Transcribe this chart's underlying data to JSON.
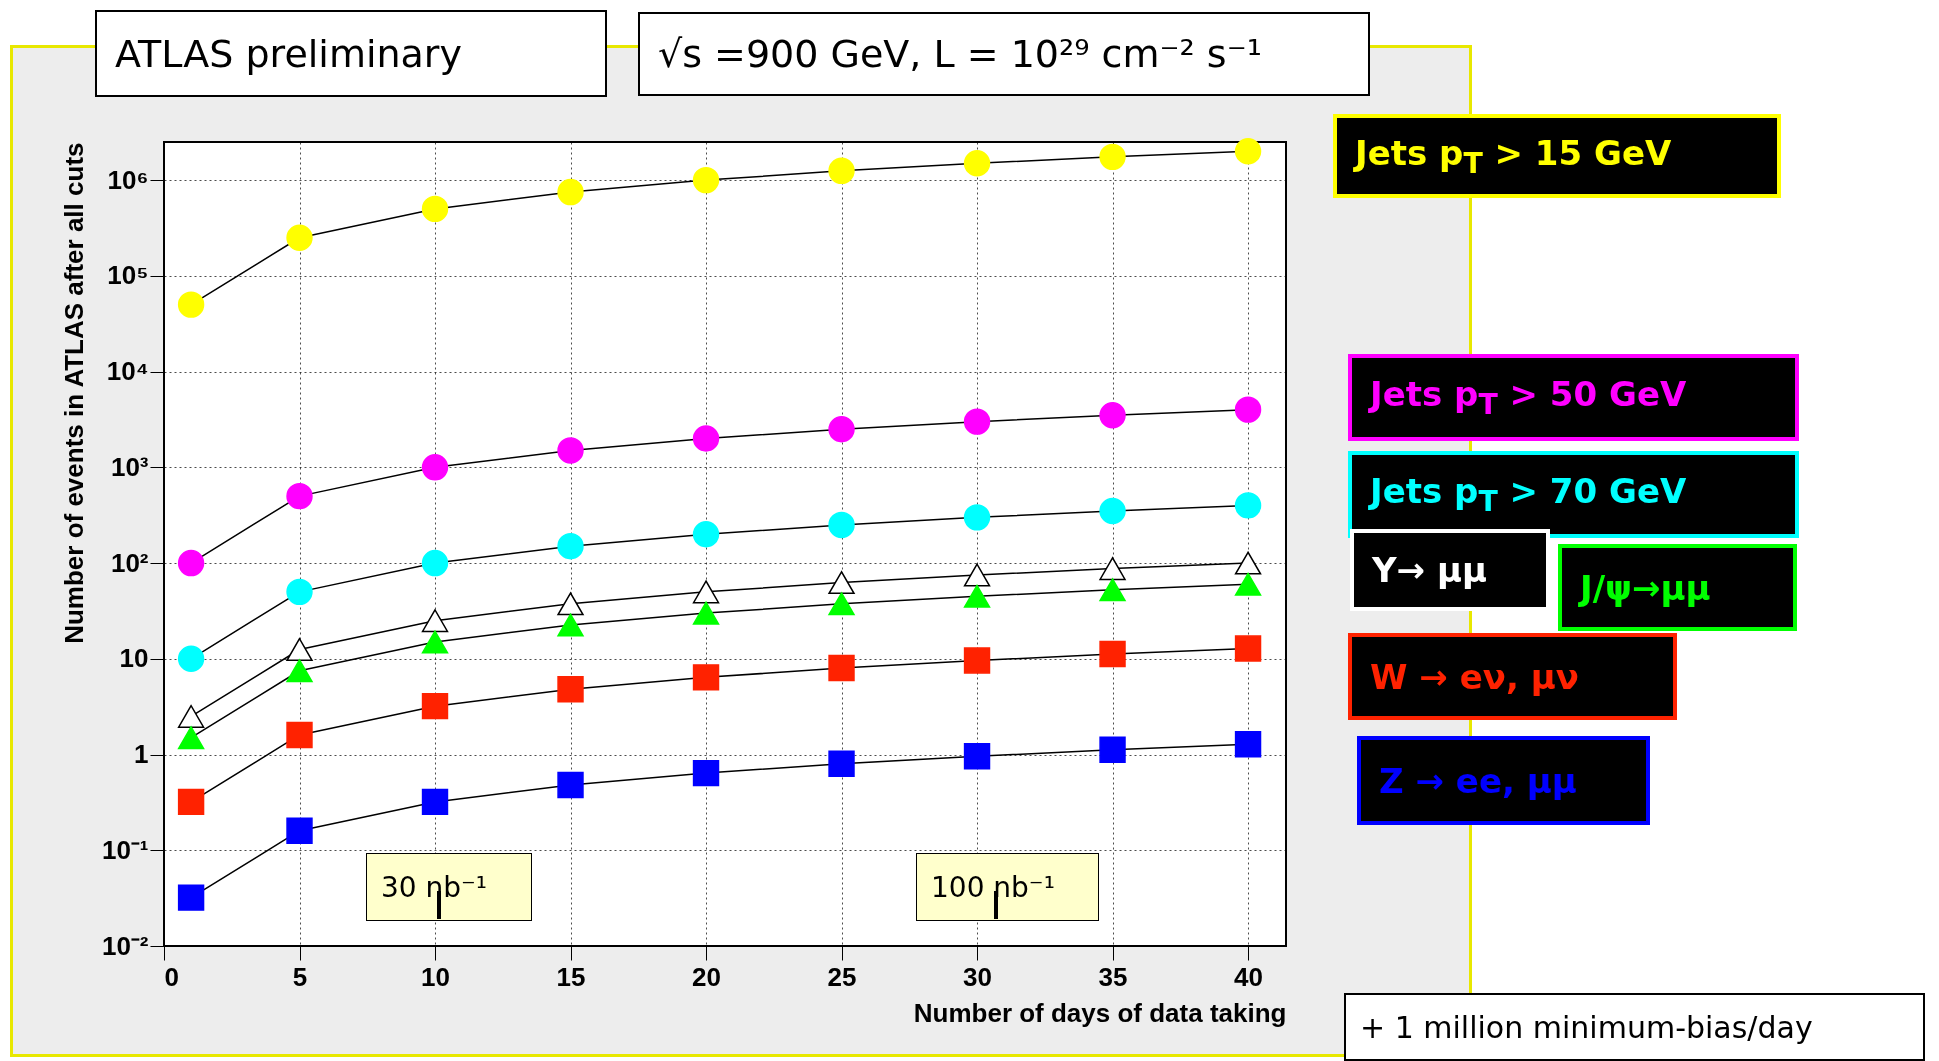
{
  "chart_data": {
    "type": "line",
    "title": "ATLAS preliminary",
    "subtitle": "√s =900 GeV,  L = 10²⁹ cm⁻² s⁻¹",
    "xlabel": "Number of days of data taking",
    "ylabel": "Number of events in ATLAS after all cuts",
    "x": [
      1,
      5,
      10,
      15,
      20,
      25,
      30,
      35,
      40
    ],
    "series": [
      {
        "name": "Jets p$_{T}$ > 15 GeV",
        "color": "#ffff00",
        "marker": "circle",
        "values": [
          50000,
          250000,
          500000,
          750000,
          1000000,
          1250000,
          1500000,
          1750000,
          2000000
        ]
      },
      {
        "name": "Jets p$_{T}$ > 50 GeV",
        "color": "#ff00ff",
        "marker": "circle",
        "values": [
          100,
          500,
          1000,
          1500,
          2000,
          2500,
          3000,
          3500,
          4000
        ]
      },
      {
        "name": "Jets p$_{T}$ > 70 GeV",
        "color": "#00ffff",
        "marker": "circle",
        "values": [
          10,
          50,
          100,
          150,
          200,
          250,
          300,
          350,
          400
        ]
      },
      {
        "name": "Υ→ μμ",
        "color": "#ffffff",
        "marker": "triangle",
        "values": [
          2.5,
          12.5,
          25,
          37.5,
          50,
          62.5,
          75,
          87.5,
          100
        ]
      },
      {
        "name": "J/ψ→μμ",
        "color": "#00ff00",
        "marker": "triangle",
        "values": [
          1.5,
          7.5,
          15,
          22.5,
          30,
          37.5,
          45,
          52.5,
          60
        ]
      },
      {
        "name": "W → eν, μν",
        "color": "#ff2200",
        "marker": "square",
        "values": [
          0.32,
          1.6,
          3.2,
          4.8,
          6.4,
          8,
          9.6,
          11.2,
          12.8
        ]
      },
      {
        "name": "Z → ee, μμ",
        "color": "#0000ff",
        "marker": "square",
        "values": [
          0.032,
          0.16,
          0.32,
          0.48,
          0.64,
          0.8,
          0.96,
          1.12,
          1.28
        ]
      }
    ],
    "log": "y",
    "grid": true,
    "legend": "right",
    "line_style": "solid",
    "xlim": [
      0,
      41.4
    ],
    "xticks": [
      0,
      5,
      10,
      15,
      20,
      25,
      30,
      35,
      40
    ],
    "ylim": [
      0.01,
      2500000
    ],
    "yticks": [
      {
        "value": 0.01,
        "label": "10⁻²"
      },
      {
        "value": 0.1,
        "label": "10⁻¹"
      },
      1,
      10,
      {
        "value": 100,
        "label": "10²"
      },
      {
        "value": 1000,
        "label": "10³"
      },
      {
        "value": 10000,
        "label": "10⁴"
      },
      {
        "value": 100000,
        "label": "10⁵"
      },
      {
        "value": 1000000,
        "label": "10⁶"
      }
    ],
    "annotations": [
      "30 nb⁻¹",
      "100 nb⁻¹",
      "+ 1 million minimum-bias/day"
    ]
  }
}
